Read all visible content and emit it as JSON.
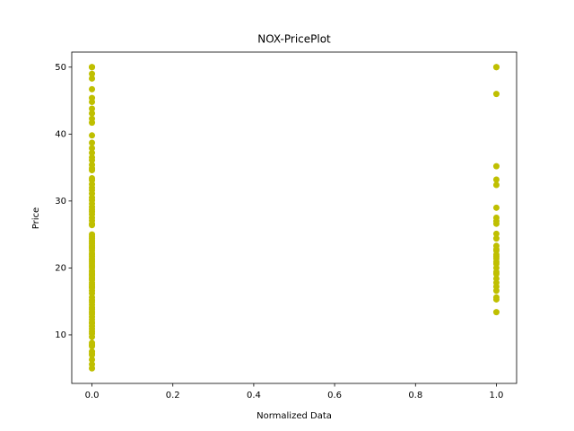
{
  "chart_data": {
    "type": "scatter",
    "title": "NOX-PricePlot",
    "xlabel": "Normalized Data",
    "ylabel": "Price",
    "x": [
      0,
      0,
      0,
      0,
      0,
      0,
      0,
      0,
      0,
      0,
      0,
      0,
      0,
      0,
      0,
      0,
      0,
      0,
      0,
      0,
      0,
      0,
      0,
      0,
      0,
      0,
      0,
      0,
      0,
      0,
      0,
      0,
      0,
      0,
      0,
      0,
      0,
      0,
      0,
      0,
      0,
      0,
      0,
      0,
      0,
      0,
      0,
      0,
      0,
      0,
      0,
      0,
      0,
      0,
      0,
      0,
      0,
      0,
      0,
      0,
      0,
      0,
      0,
      0,
      0,
      0,
      0,
      0,
      0,
      0,
      0,
      0,
      0,
      0,
      0,
      0,
      0,
      0,
      0,
      0,
      0,
      0,
      0,
      0,
      0,
      0,
      0,
      0,
      0,
      0,
      0,
      0,
      0,
      0,
      0,
      0,
      1,
      1,
      1,
      1,
      1,
      1,
      1,
      1,
      1,
      1,
      1,
      1,
      1,
      1,
      1,
      1,
      1,
      1,
      1,
      1,
      1,
      1,
      1,
      1,
      1,
      1,
      1,
      1,
      1,
      1
    ],
    "values": [
      50,
      50,
      50,
      49,
      48.3,
      46.7,
      45.4,
      44.8,
      43.8,
      43.1,
      42.3,
      41.7,
      39.8,
      38.7,
      37.9,
      37.2,
      36.5,
      36.1,
      35.4,
      34.9,
      34.6,
      33.4,
      33.1,
      32.5,
      32,
      31.6,
      31.1,
      30.5,
      30.1,
      29.6,
      29.1,
      28.7,
      28.4,
      28,
      27.5,
      27.1,
      26.6,
      26.4,
      25,
      24.7,
      24.4,
      24.1,
      23.9,
      23.6,
      23.3,
      23.1,
      22.9,
      22.6,
      22.2,
      22,
      21.7,
      21.4,
      21.2,
      20.9,
      20.6,
      20.3,
      20,
      19.6,
      19.4,
      19.1,
      18.9,
      18.6,
      18.4,
      18.2,
      17.8,
      17.5,
      17.2,
      17,
      16.6,
      16.2,
      15.6,
      15.2,
      14.9,
      14.5,
      14.1,
      13.8,
      13.4,
      13.1,
      12.7,
      12.3,
      11.9,
      11.7,
      11.3,
      10.9,
      10.5,
      10.2,
      9.7,
      8.8,
      8.5,
      8.3,
      7.5,
      7.2,
      7,
      6.3,
      5.6,
      5,
      50,
      50,
      46,
      35.2,
      33.2,
      32.4,
      29,
      27.5,
      27,
      26.6,
      25.1,
      24.4,
      23.3,
      22.8,
      22.6,
      22,
      21.7,
      21.4,
      20.9,
      20.6,
      20,
      19.4,
      19.1,
      18.4,
      17.8,
      17.2,
      16.6,
      15.6,
      15.3,
      13.4
    ],
    "color": "#bfbf00",
    "xlim": [
      -0.05,
      1.05
    ],
    "ylim": [
      2.75,
      52.25
    ],
    "xticks": [
      {
        "value": 0,
        "label": "0.0"
      },
      0.2,
      0.4,
      0.6,
      0.8,
      {
        "value": 1,
        "label": "1.0"
      }
    ],
    "yticks": [
      10,
      20,
      30,
      40,
      50
    ],
    "grid": false
  }
}
